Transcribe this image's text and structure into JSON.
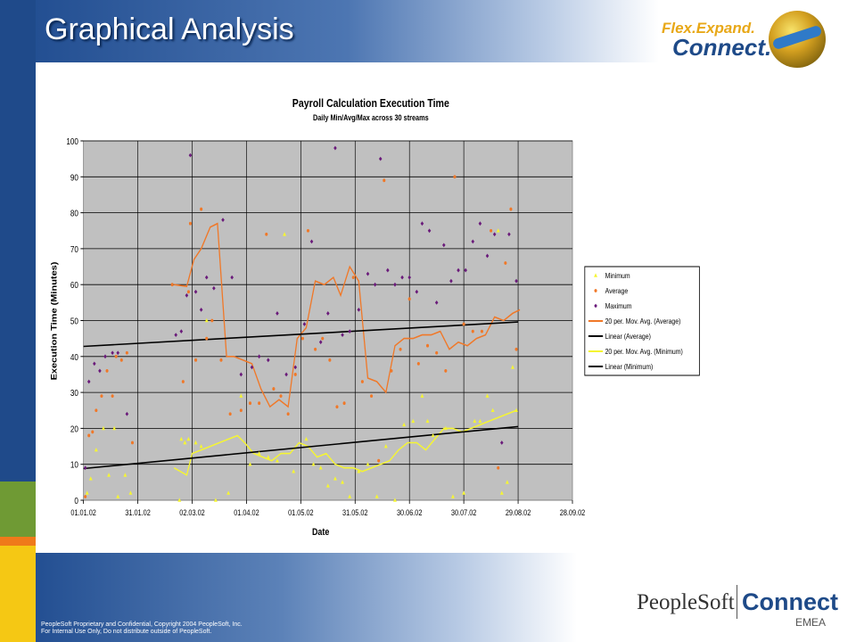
{
  "slide": {
    "title": "Graphical Analysis",
    "brand_top_line1": "Flex.Expand.",
    "brand_top_line2": "Connect.",
    "footer_line1": "PeopleSoft Proprietary and Confidential, Copyright 2004 PeopleSoft, Inc.",
    "footer_line2": "For Internal Use Only, Do not distribute outside of PeopleSoft.",
    "footer_logo_peoplesoft": "PeopleSoft",
    "footer_logo_connect": "Connect",
    "footer_logo_emea": "EMEA"
  },
  "colors": {
    "minimum": "#f5f532",
    "average": "#f07828",
    "maximum": "#6a1a7a",
    "trend": "#000000",
    "plot_background": "#c0c0c0"
  },
  "chart_data": {
    "type": "scatter",
    "title": "Payroll Calculation Execution Time",
    "subtitle": "Daily Min/Avg/Max across 30 streams",
    "xlabel": "Date",
    "ylabel": "Execution Time (Minutes)",
    "x_ticks": [
      "01.01.02",
      "31.01.02",
      "02.03.02",
      "01.04.02",
      "01.05.02",
      "31.05.02",
      "30.06.02",
      "30.07.02",
      "29.08.02",
      "28.09.02"
    ],
    "xlim": [
      "01.01.02",
      "28.09.02"
    ],
    "ylim": [
      0,
      100
    ],
    "y_ticks": [
      0,
      10,
      20,
      30,
      40,
      50,
      60,
      70,
      80,
      90,
      100
    ],
    "grid": true,
    "legend": "right",
    "series": [
      {
        "name": "Minimum",
        "kind": "markers",
        "marker": "triangle",
        "color": "#f5f532",
        "points": [
          [
            "03.01.02",
            2
          ],
          [
            "05.01.02",
            6
          ],
          [
            "08.01.02",
            14
          ],
          [
            "12.01.02",
            20
          ],
          [
            "15.01.02",
            7
          ],
          [
            "18.01.02",
            20
          ],
          [
            "20.01.02",
            1
          ],
          [
            "24.01.02",
            7
          ],
          [
            "27.01.02",
            2
          ],
          [
            "23.02.02",
            0
          ],
          [
            "24.02.02",
            17
          ],
          [
            "26.02.02",
            16
          ],
          [
            "28.02.02",
            17
          ],
          [
            "04.03.02",
            16
          ],
          [
            "07.03.02",
            15
          ],
          [
            "10.03.02",
            50
          ],
          [
            "15.03.02",
            0
          ],
          [
            "22.03.02",
            2
          ],
          [
            "29.03.02",
            29
          ],
          [
            "03.04.02",
            10
          ],
          [
            "08.04.02",
            13
          ],
          [
            "13.04.02",
            12
          ],
          [
            "18.04.02",
            11
          ],
          [
            "22.04.02",
            74
          ],
          [
            "27.04.02",
            8
          ],
          [
            "04.05.02",
            17
          ],
          [
            "08.05.02",
            10
          ],
          [
            "12.05.02",
            9
          ],
          [
            "16.05.02",
            4
          ],
          [
            "20.05.02",
            6
          ],
          [
            "24.05.02",
            5
          ],
          [
            "28.05.02",
            1
          ],
          [
            "02.06.02",
            8
          ],
          [
            "07.06.02",
            10
          ],
          [
            "12.06.02",
            1
          ],
          [
            "17.06.02",
            15
          ],
          [
            "22.06.02",
            0
          ],
          [
            "27.06.02",
            21
          ],
          [
            "02.07.02",
            22
          ],
          [
            "07.07.02",
            29
          ],
          [
            "10.07.02",
            22
          ],
          [
            "13.07.02",
            18
          ],
          [
            "20.07.02",
            20
          ],
          [
            "24.07.02",
            1
          ],
          [
            "30.07.02",
            2
          ],
          [
            "05.08.02",
            22
          ],
          [
            "08.08.02",
            22
          ],
          [
            "12.08.02",
            29
          ],
          [
            "15.08.02",
            25
          ],
          [
            "18.08.02",
            75
          ],
          [
            "20.08.02",
            2
          ],
          [
            "23.08.02",
            5
          ],
          [
            "26.08.02",
            37
          ],
          [
            "28.08.02",
            25
          ]
        ]
      },
      {
        "name": "Average",
        "kind": "markers",
        "marker": "dot",
        "color": "#f07828",
        "points": [
          [
            "02.01.02",
            1
          ],
          [
            "04.01.02",
            18
          ],
          [
            "06.01.02",
            19
          ],
          [
            "08.01.02",
            25
          ],
          [
            "11.01.02",
            29
          ],
          [
            "14.01.02",
            36
          ],
          [
            "17.01.02",
            29
          ],
          [
            "19.01.02",
            40
          ],
          [
            "22.01.02",
            39
          ],
          [
            "25.01.02",
            41
          ],
          [
            "28.01.02",
            16
          ],
          [
            "19.02.02",
            60
          ],
          [
            "25.02.02",
            33
          ],
          [
            "28.02.02",
            58
          ],
          [
            "01.03.02",
            77
          ],
          [
            "04.03.02",
            39
          ],
          [
            "07.03.02",
            81
          ],
          [
            "10.03.02",
            45
          ],
          [
            "13.03.02",
            50
          ],
          [
            "18.03.02",
            39
          ],
          [
            "23.03.02",
            24
          ],
          [
            "29.03.02",
            25
          ],
          [
            "03.04.02",
            27
          ],
          [
            "08.04.02",
            27
          ],
          [
            "12.04.02",
            74
          ],
          [
            "16.04.02",
            31
          ],
          [
            "20.04.02",
            29
          ],
          [
            "24.04.02",
            24
          ],
          [
            "28.04.02",
            35
          ],
          [
            "02.05.02",
            45
          ],
          [
            "05.05.02",
            75
          ],
          [
            "09.05.02",
            42
          ],
          [
            "13.05.02",
            45
          ],
          [
            "17.05.02",
            39
          ],
          [
            "21.05.02",
            26
          ],
          [
            "25.05.02",
            27
          ],
          [
            "30.05.02",
            62
          ],
          [
            "04.06.02",
            33
          ],
          [
            "09.06.02",
            29
          ],
          [
            "13.06.02",
            11
          ],
          [
            "16.06.02",
            89
          ],
          [
            "20.06.02",
            36
          ],
          [
            "25.06.02",
            42
          ],
          [
            "30.06.02",
            56
          ],
          [
            "05.07.02",
            38
          ],
          [
            "10.07.02",
            43
          ],
          [
            "15.07.02",
            41
          ],
          [
            "20.07.02",
            36
          ],
          [
            "25.07.02",
            90
          ],
          [
            "30.07.02",
            49
          ],
          [
            "04.08.02",
            47
          ],
          [
            "09.08.02",
            47
          ],
          [
            "14.08.02",
            75
          ],
          [
            "18.08.02",
            9
          ],
          [
            "22.08.02",
            66
          ],
          [
            "25.08.02",
            81
          ],
          [
            "28.08.02",
            42
          ]
        ]
      },
      {
        "name": "Maximum",
        "kind": "markers",
        "marker": "diamond",
        "color": "#6a1a7a",
        "points": [
          [
            "02.01.02",
            9
          ],
          [
            "04.01.02",
            33
          ],
          [
            "07.01.02",
            38
          ],
          [
            "10.01.02",
            36
          ],
          [
            "13.01.02",
            40
          ],
          [
            "17.01.02",
            41
          ],
          [
            "20.01.02",
            41
          ],
          [
            "25.01.02",
            24
          ],
          [
            "21.02.02",
            46
          ],
          [
            "24.02.02",
            47
          ],
          [
            "27.02.02",
            57
          ],
          [
            "01.03.02",
            96
          ],
          [
            "04.03.02",
            58
          ],
          [
            "07.03.02",
            53
          ],
          [
            "10.03.02",
            62
          ],
          [
            "14.03.02",
            59
          ],
          [
            "19.03.02",
            78
          ],
          [
            "24.03.02",
            62
          ],
          [
            "29.03.02",
            35
          ],
          [
            "04.04.02",
            37
          ],
          [
            "08.04.02",
            40
          ],
          [
            "13.04.02",
            39
          ],
          [
            "18.04.02",
            52
          ],
          [
            "23.04.02",
            35
          ],
          [
            "28.04.02",
            37
          ],
          [
            "03.05.02",
            49
          ],
          [
            "07.05.02",
            72
          ],
          [
            "12.05.02",
            44
          ],
          [
            "16.05.02",
            52
          ],
          [
            "20.05.02",
            98
          ],
          [
            "24.05.02",
            46
          ],
          [
            "28.05.02",
            47
          ],
          [
            "02.06.02",
            53
          ],
          [
            "07.06.02",
            63
          ],
          [
            "11.06.02",
            60
          ],
          [
            "14.06.02",
            95
          ],
          [
            "18.06.02",
            64
          ],
          [
            "22.06.02",
            60
          ],
          [
            "26.06.02",
            62
          ],
          [
            "30.06.02",
            62
          ],
          [
            "04.07.02",
            58
          ],
          [
            "07.07.02",
            77
          ],
          [
            "11.07.02",
            75
          ],
          [
            "15.07.02",
            55
          ],
          [
            "19.07.02",
            71
          ],
          [
            "23.07.02",
            61
          ],
          [
            "27.07.02",
            64
          ],
          [
            "31.07.02",
            64
          ],
          [
            "04.08.02",
            72
          ],
          [
            "08.08.02",
            77
          ],
          [
            "12.08.02",
            68
          ],
          [
            "16.08.02",
            74
          ],
          [
            "20.08.02",
            16
          ],
          [
            "24.08.02",
            74
          ],
          [
            "28.08.02",
            61
          ]
        ]
      },
      {
        "name": "20 per. Mov. Avg. (Average)",
        "kind": "line",
        "color": "#f07828",
        "points": [
          [
            "20.02.02",
            60
          ],
          [
            "27.02.02",
            59.5
          ],
          [
            "03.03.02",
            67
          ],
          [
            "07.03.02",
            70
          ],
          [
            "12.03.02",
            76
          ],
          [
            "16.03.02",
            77
          ],
          [
            "21.03.02",
            40
          ],
          [
            "25.03.02",
            40
          ],
          [
            "30.03.02",
            39
          ],
          [
            "04.04.02",
            38
          ],
          [
            "09.04.02",
            31
          ],
          [
            "14.04.02",
            26
          ],
          [
            "19.04.02",
            28
          ],
          [
            "24.04.02",
            26
          ],
          [
            "29.04.02",
            45
          ],
          [
            "04.05.02",
            48
          ],
          [
            "09.05.02",
            61
          ],
          [
            "14.05.02",
            60
          ],
          [
            "19.05.02",
            62
          ],
          [
            "23.05.02",
            57
          ],
          [
            "28.05.02",
            65
          ],
          [
            "02.06.02",
            61
          ],
          [
            "07.06.02",
            34
          ],
          [
            "12.06.02",
            33
          ],
          [
            "17.06.02",
            30
          ],
          [
            "22.06.02",
            43
          ],
          [
            "27.06.02",
            45
          ],
          [
            "02.07.02",
            45
          ],
          [
            "07.07.02",
            46
          ],
          [
            "12.07.02",
            46
          ],
          [
            "17.07.02",
            47
          ],
          [
            "22.07.02",
            42
          ],
          [
            "27.07.02",
            44
          ],
          [
            "01.08.02",
            43
          ],
          [
            "06.08.02",
            45
          ],
          [
            "11.08.02",
            46
          ],
          [
            "16.08.02",
            51
          ],
          [
            "21.08.02",
            50
          ],
          [
            "26.08.02",
            52
          ],
          [
            "30.08.02",
            53
          ]
        ]
      },
      {
        "name": "Linear (Average)",
        "kind": "line",
        "color": "#000000",
        "points": [
          [
            "01.01.02",
            42.8
          ],
          [
            "29.08.02",
            49.6
          ]
        ]
      },
      {
        "name": "20 per. Mov. Avg. (Minimum)",
        "kind": "line",
        "color": "#f5f532",
        "points": [
          [
            "20.02.02",
            9
          ],
          [
            "27.02.02",
            7
          ],
          [
            "02.03.02",
            13
          ],
          [
            "07.03.02",
            14
          ],
          [
            "12.03.02",
            15
          ],
          [
            "17.03.02",
            16
          ],
          [
            "22.03.02",
            17
          ],
          [
            "27.03.02",
            18
          ],
          [
            "31.03.02",
            16
          ],
          [
            "05.04.02",
            13
          ],
          [
            "10.04.02",
            12
          ],
          [
            "15.04.02",
            11
          ],
          [
            "20.04.02",
            13
          ],
          [
            "25.04.02",
            13
          ],
          [
            "30.04.02",
            16
          ],
          [
            "05.05.02",
            15
          ],
          [
            "10.05.02",
            12
          ],
          [
            "15.05.02",
            13
          ],
          [
            "20.05.02",
            10
          ],
          [
            "25.05.02",
            9
          ],
          [
            "30.05.02",
            9
          ],
          [
            "04.06.02",
            8
          ],
          [
            "09.06.02",
            9
          ],
          [
            "14.06.02",
            10
          ],
          [
            "19.06.02",
            11
          ],
          [
            "24.06.02",
            14
          ],
          [
            "29.06.02",
            16
          ],
          [
            "04.07.02",
            16
          ],
          [
            "09.07.02",
            14
          ],
          [
            "14.07.02",
            17
          ],
          [
            "19.07.02",
            20
          ],
          [
            "24.07.02",
            20
          ],
          [
            "29.07.02",
            19
          ],
          [
            "03.08.02",
            20
          ],
          [
            "08.08.02",
            21
          ],
          [
            "13.08.02",
            22
          ],
          [
            "18.08.02",
            23
          ],
          [
            "23.08.02",
            24
          ],
          [
            "28.08.02",
            25
          ]
        ]
      },
      {
        "name": "Linear (Minimum)",
        "kind": "line",
        "color": "#000000",
        "points": [
          [
            "01.01.02",
            8.8
          ],
          [
            "29.08.02",
            20.5
          ]
        ]
      }
    ]
  }
}
